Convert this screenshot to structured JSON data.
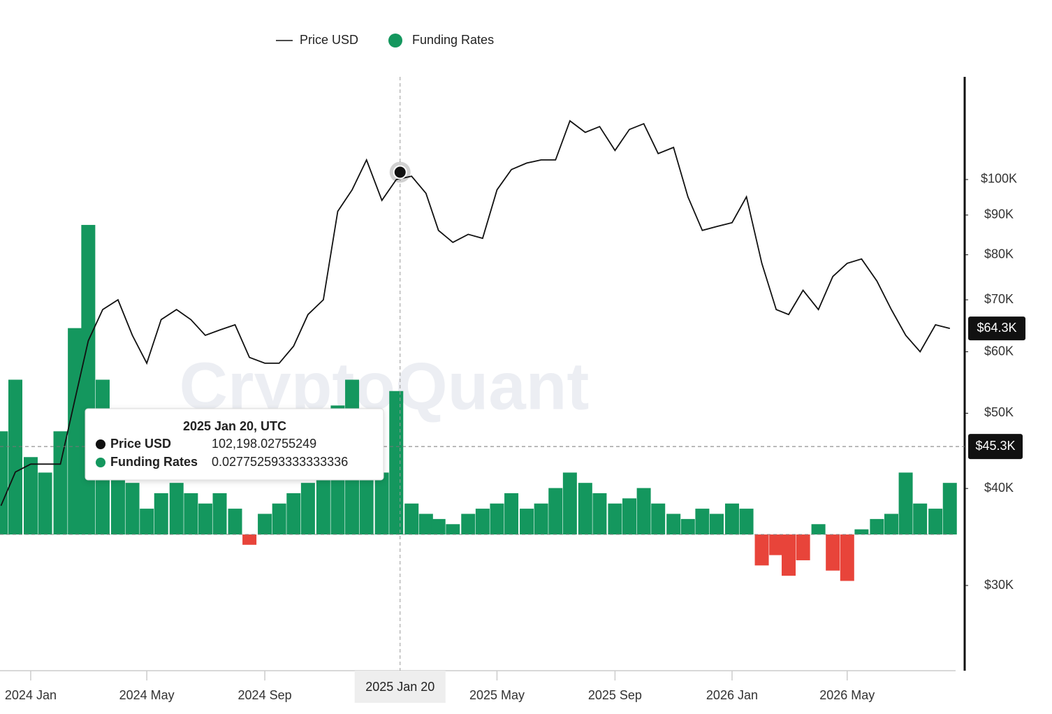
{
  "chart_data": {
    "type": "line",
    "watermark": "CryptoQuant",
    "x": [
      "2023-12-01",
      "2023-12-16",
      "2024-01-01",
      "2024-01-16",
      "2024-02-01",
      "2024-02-16",
      "2024-03-01",
      "2024-03-16",
      "2024-04-01",
      "2024-04-16",
      "2024-05-01",
      "2024-05-16",
      "2024-06-01",
      "2024-06-16",
      "2024-07-01",
      "2024-07-16",
      "2024-08-01",
      "2024-08-16",
      "2024-09-01",
      "2024-09-16",
      "2024-10-01",
      "2024-10-16",
      "2024-11-01",
      "2024-11-16",
      "2024-12-01",
      "2024-12-16",
      "2025-01-01",
      "2025-01-16",
      "2025-02-01",
      "2025-02-16",
      "2025-03-01",
      "2025-03-16",
      "2025-04-01",
      "2025-04-16",
      "2025-05-01",
      "2025-05-16",
      "2025-06-01",
      "2025-06-16",
      "2025-07-01",
      "2025-07-16",
      "2025-08-01",
      "2025-08-16",
      "2025-09-01",
      "2025-09-16",
      "2025-10-01",
      "2025-10-16",
      "2025-11-01",
      "2025-11-16",
      "2025-12-01",
      "2025-12-16",
      "2026-01-01",
      "2026-01-16",
      "2026-02-01",
      "2026-02-16",
      "2026-03-01",
      "2026-03-16",
      "2026-04-01",
      "2026-04-16",
      "2026-05-01",
      "2026-05-16",
      "2026-06-01",
      "2026-06-16",
      "2026-07-01",
      "2026-07-16",
      "2026-08-01",
      "2026-08-16"
    ],
    "series": [
      {
        "name": "Price USD",
        "type": "line",
        "axis": "y",
        "color": "#111111",
        "values": [
          38000,
          42000,
          43000,
          43000,
          43000,
          52000,
          62000,
          68000,
          70000,
          63000,
          58000,
          66000,
          68000,
          66000,
          63000,
          64000,
          65000,
          59000,
          58000,
          58000,
          61000,
          67000,
          70000,
          91000,
          97000,
          106000,
          94000,
          100000,
          101000,
          96000,
          86000,
          83000,
          85000,
          84000,
          97000,
          103000,
          105000,
          106000,
          106000,
          119000,
          115000,
          117000,
          109000,
          116000,
          118000,
          108000,
          110000,
          95000,
          86000,
          87000,
          88000,
          95000,
          78000,
          68000,
          67000,
          72000,
          68000,
          75000,
          78000,
          79000,
          74000,
          68000,
          63000,
          60000,
          65000,
          64300
        ]
      },
      {
        "name": "Funding Rates",
        "type": "bar",
        "axis": "y2",
        "color": "#14975e",
        "negative_color": "#e8443a",
        "values": [
          0.02,
          0.03,
          0.015,
          0.012,
          0.02,
          0.04,
          0.06,
          0.03,
          0.015,
          0.01,
          0.005,
          0.008,
          0.01,
          0.008,
          0.006,
          0.008,
          0.005,
          -0.002,
          0.004,
          0.006,
          0.008,
          0.01,
          0.012,
          0.025,
          0.03,
          0.02,
          0.012,
          0.0278,
          0.006,
          0.004,
          0.003,
          0.002,
          0.004,
          0.005,
          0.006,
          0.008,
          0.005,
          0.006,
          0.009,
          0.012,
          0.01,
          0.008,
          0.006,
          0.007,
          0.009,
          0.006,
          0.004,
          0.003,
          0.005,
          0.004,
          0.006,
          0.005,
          -0.006,
          -0.004,
          -0.008,
          -0.005,
          0.002,
          -0.007,
          -0.009,
          0.001,
          0.003,
          0.004,
          0.012,
          0.006,
          0.005,
          0.01
        ]
      }
    ],
    "xlim": [
      "2023-11-30",
      "2026-08-22"
    ],
    "xticks": [
      {
        "value": "2024-01-01",
        "label": "2024 Jan"
      },
      {
        "value": "2024-05-01",
        "label": "2024 May"
      },
      {
        "value": "2024-09-01",
        "label": "2024 Sep"
      },
      {
        "value": "2025-05-01",
        "label": "2025 May"
      },
      {
        "value": "2025-09-01",
        "label": "2025 Sep"
      },
      {
        "value": "2026-01-01",
        "label": "2026 Jan"
      },
      {
        "value": "2026-05-01",
        "label": "2026 May"
      }
    ],
    "ylim": [
      23300,
      135600
    ],
    "log_scale": true,
    "yticks": [
      {
        "value": 30000,
        "label": "$30K"
      },
      {
        "value": 40000,
        "label": "$40K"
      },
      {
        "value": 50000,
        "label": "$50K"
      },
      {
        "value": 60000,
        "label": "$60K"
      },
      {
        "value": 70000,
        "label": "$70K"
      },
      {
        "value": 80000,
        "label": "$80K"
      },
      {
        "value": 90000,
        "label": "$90K"
      },
      {
        "value": 100000,
        "label": "$100K"
      }
    ],
    "y2lim": [
      -0.0264,
      0.0887
    ],
    "last_price": {
      "value": 64300,
      "label": "$64.3K"
    },
    "crosshair": {
      "x": "2025-01-20",
      "label": "2025 Jan 20",
      "y": {
        "value": 45300,
        "label": "$45.3K"
      }
    },
    "tooltip": {
      "title": "2025 Jan 20, UTC",
      "rows": [
        {
          "name": "Price USD",
          "value": 102198.02755249,
          "label": "102,198.02755249",
          "color": "#111111"
        },
        {
          "name": "Funding Rates",
          "value": 0.027752593333333336,
          "label": "0.027752593333333336",
          "color": "#14975e"
        }
      ]
    }
  }
}
